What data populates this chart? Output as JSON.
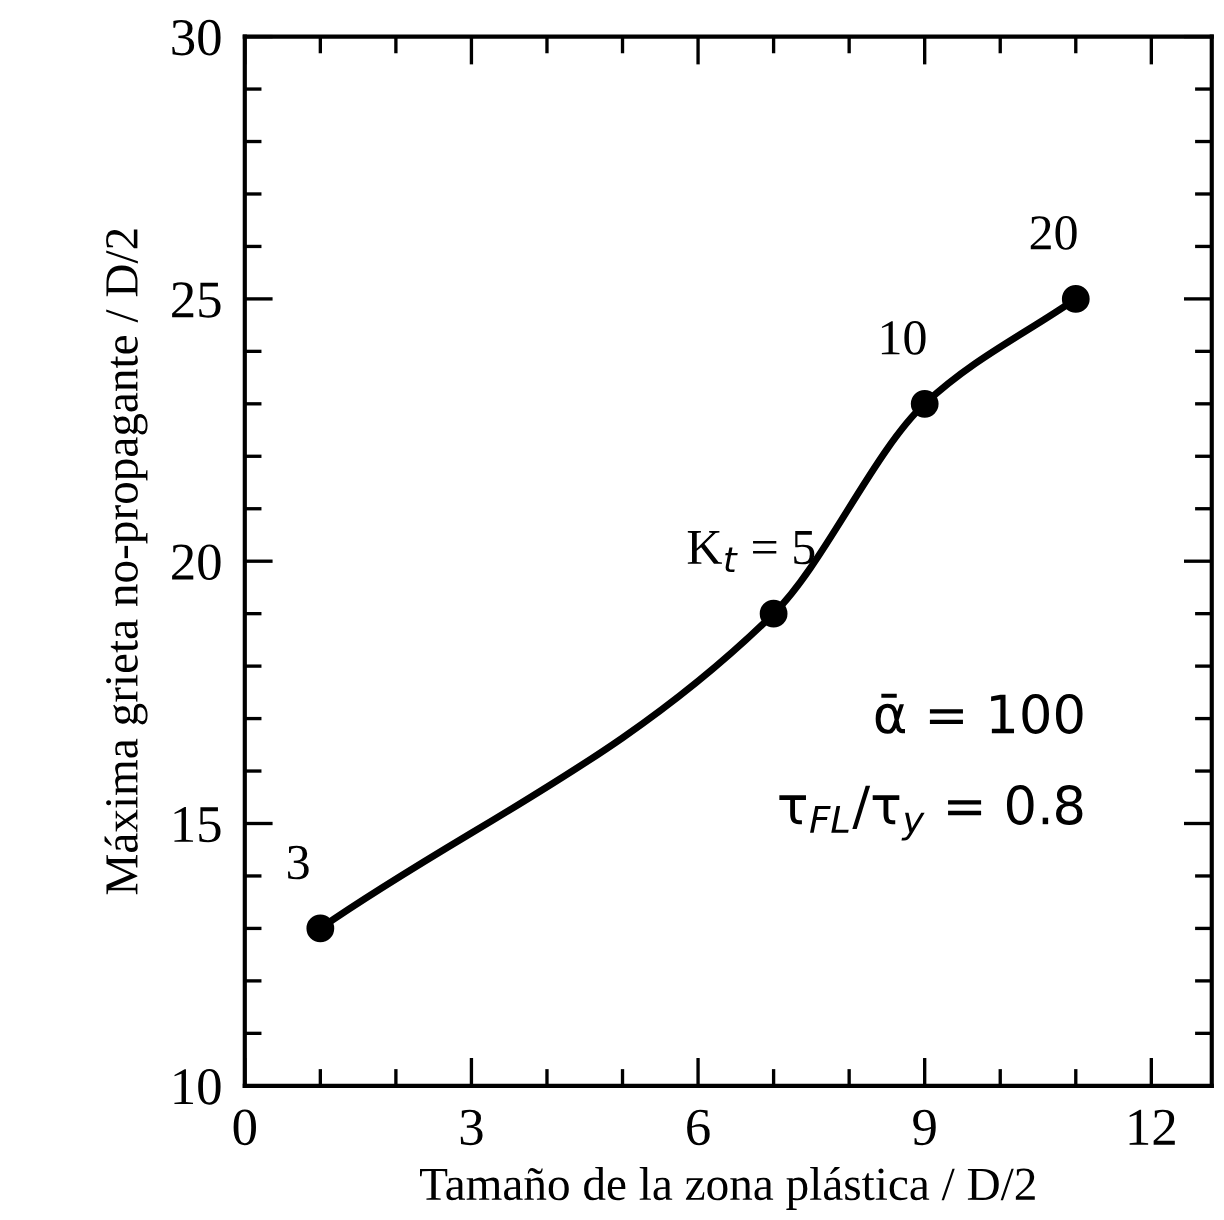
{
  "chart_data": {
    "type": "line",
    "xlabel": "Tamaño de la zona plástica / D/2",
    "ylabel": "Máxima grieta no-propagante / D/2",
    "x": [
      1,
      7,
      9,
      11
    ],
    "series": [
      {
        "color": "#000000",
        "values": [
          13,
          19,
          23,
          25
        ]
      }
    ],
    "marker": "circle",
    "line_style": "solid",
    "grid": false,
    "legend": false,
    "xlim": [
      0,
      12.8
    ],
    "ylim": [
      10,
      30
    ],
    "xticks": [
      0,
      {
        "value": 1,
        "label": null
      },
      {
        "value": 2,
        "label": null
      },
      3,
      {
        "value": 4,
        "label": null
      },
      {
        "value": 5,
        "label": null
      },
      6,
      {
        "value": 7,
        "label": null
      },
      {
        "value": 8,
        "label": null
      },
      9,
      {
        "value": 10,
        "label": null
      },
      {
        "value": 11,
        "label": null
      },
      12
    ],
    "yticks": [
      10,
      {
        "value": 11,
        "label": null
      },
      {
        "value": 12,
        "label": null
      },
      {
        "value": 13,
        "label": null
      },
      {
        "value": 14,
        "label": null
      },
      15,
      {
        "value": 16,
        "label": null
      },
      {
        "value": 17,
        "label": null
      },
      {
        "value": 18,
        "label": null
      },
      {
        "value": 19,
        "label": null
      },
      20,
      {
        "value": 21,
        "label": null
      },
      {
        "value": 22,
        "label": null
      },
      {
        "value": 23,
        "label": null
      },
      {
        "value": 24,
        "label": null
      },
      25,
      {
        "value": 26,
        "label": null
      },
      {
        "value": 27,
        "label": null
      },
      {
        "value": 28,
        "label": null
      },
      {
        "value": 29,
        "label": null
      },
      30
    ],
    "annotations": [
      {
        "text": "3",
        "x": 1,
        "y": 13
      },
      {
        "text": "K$_{t}$ = 5",
        "x": 7,
        "y": 19
      },
      {
        "text": "10",
        "x": 9,
        "y": 23
      },
      {
        "text": "20",
        "x": 11,
        "y": 25
      },
      "ᾱ = 100",
      "τ$_{FL}$/τ$_{y}$ = 0.8"
    ]
  }
}
